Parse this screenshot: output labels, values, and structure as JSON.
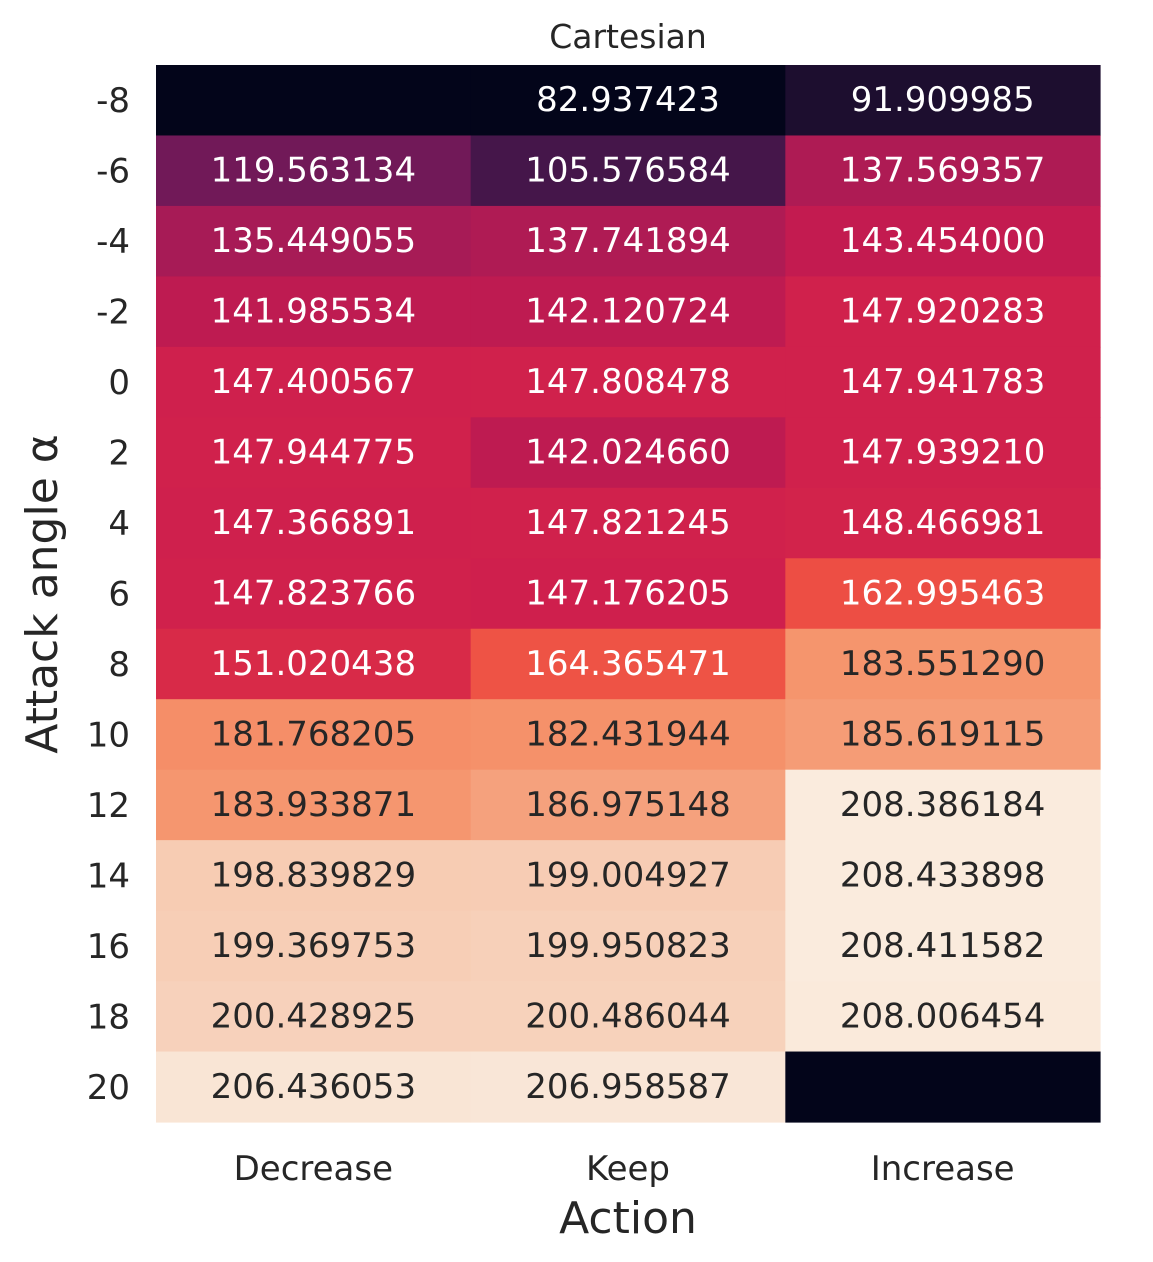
{
  "chart_data": {
    "type": "heatmap",
    "title": "Cartesian",
    "xlabel": "Action",
    "ylabel": "Attack angle α",
    "x_categories": [
      "Decrease",
      "Keep",
      "Increase"
    ],
    "y_categories": [
      "-8",
      "-6",
      "-4",
      "-2",
      "0",
      "2",
      "4",
      "6",
      "8",
      "10",
      "12",
      "14",
      "16",
      "18",
      "20"
    ],
    "values": [
      [
        null,
        82.937423,
        91.909985
      ],
      [
        119.563134,
        105.576584,
        137.569357
      ],
      [
        135.449055,
        137.741894,
        143.454
      ],
      [
        141.985534,
        142.120724,
        147.920283
      ],
      [
        147.400567,
        147.808478,
        147.941783
      ],
      [
        147.944775,
        142.02466,
        147.93921
      ],
      [
        147.366891,
        147.821245,
        148.466981
      ],
      [
        147.823766,
        147.176205,
        162.995463
      ],
      [
        151.020438,
        164.365471,
        183.55129
      ],
      [
        181.768205,
        182.431944,
        185.619115
      ],
      [
        183.933871,
        186.975148,
        208.386184
      ],
      [
        198.839829,
        199.004927,
        208.433898
      ],
      [
        199.369753,
        199.950823,
        208.411582
      ],
      [
        200.428925,
        200.486044,
        208.006454
      ],
      [
        206.436053,
        206.958587,
        null
      ]
    ],
    "value_labels": [
      [
        "",
        "82.937423",
        "91.909985"
      ],
      [
        "119.563134",
        "105.576584",
        "137.569357"
      ],
      [
        "135.449055",
        "137.741894",
        "143.454000"
      ],
      [
        "141.985534",
        "142.120724",
        "147.920283"
      ],
      [
        "147.400567",
        "147.808478",
        "147.941783"
      ],
      [
        "147.944775",
        "142.024660",
        "147.939210"
      ],
      [
        "147.366891",
        "147.821245",
        "148.466981"
      ],
      [
        "147.823766",
        "147.176205",
        "162.995463"
      ],
      [
        "151.020438",
        "164.365471",
        "183.551290"
      ],
      [
        "181.768205",
        "182.431944",
        "185.619115"
      ],
      [
        "183.933871",
        "186.975148",
        "208.386184"
      ],
      [
        "198.839829",
        "199.004927",
        "208.433898"
      ],
      [
        "199.369753",
        "199.950823",
        "208.411582"
      ],
      [
        "200.428925",
        "200.486044",
        "208.006454"
      ],
      [
        "206.436053",
        "206.958587",
        ""
      ]
    ],
    "colormap": "rocket",
    "missing_cell_color": "#03051a",
    "grid": false,
    "colorbar": false
  }
}
